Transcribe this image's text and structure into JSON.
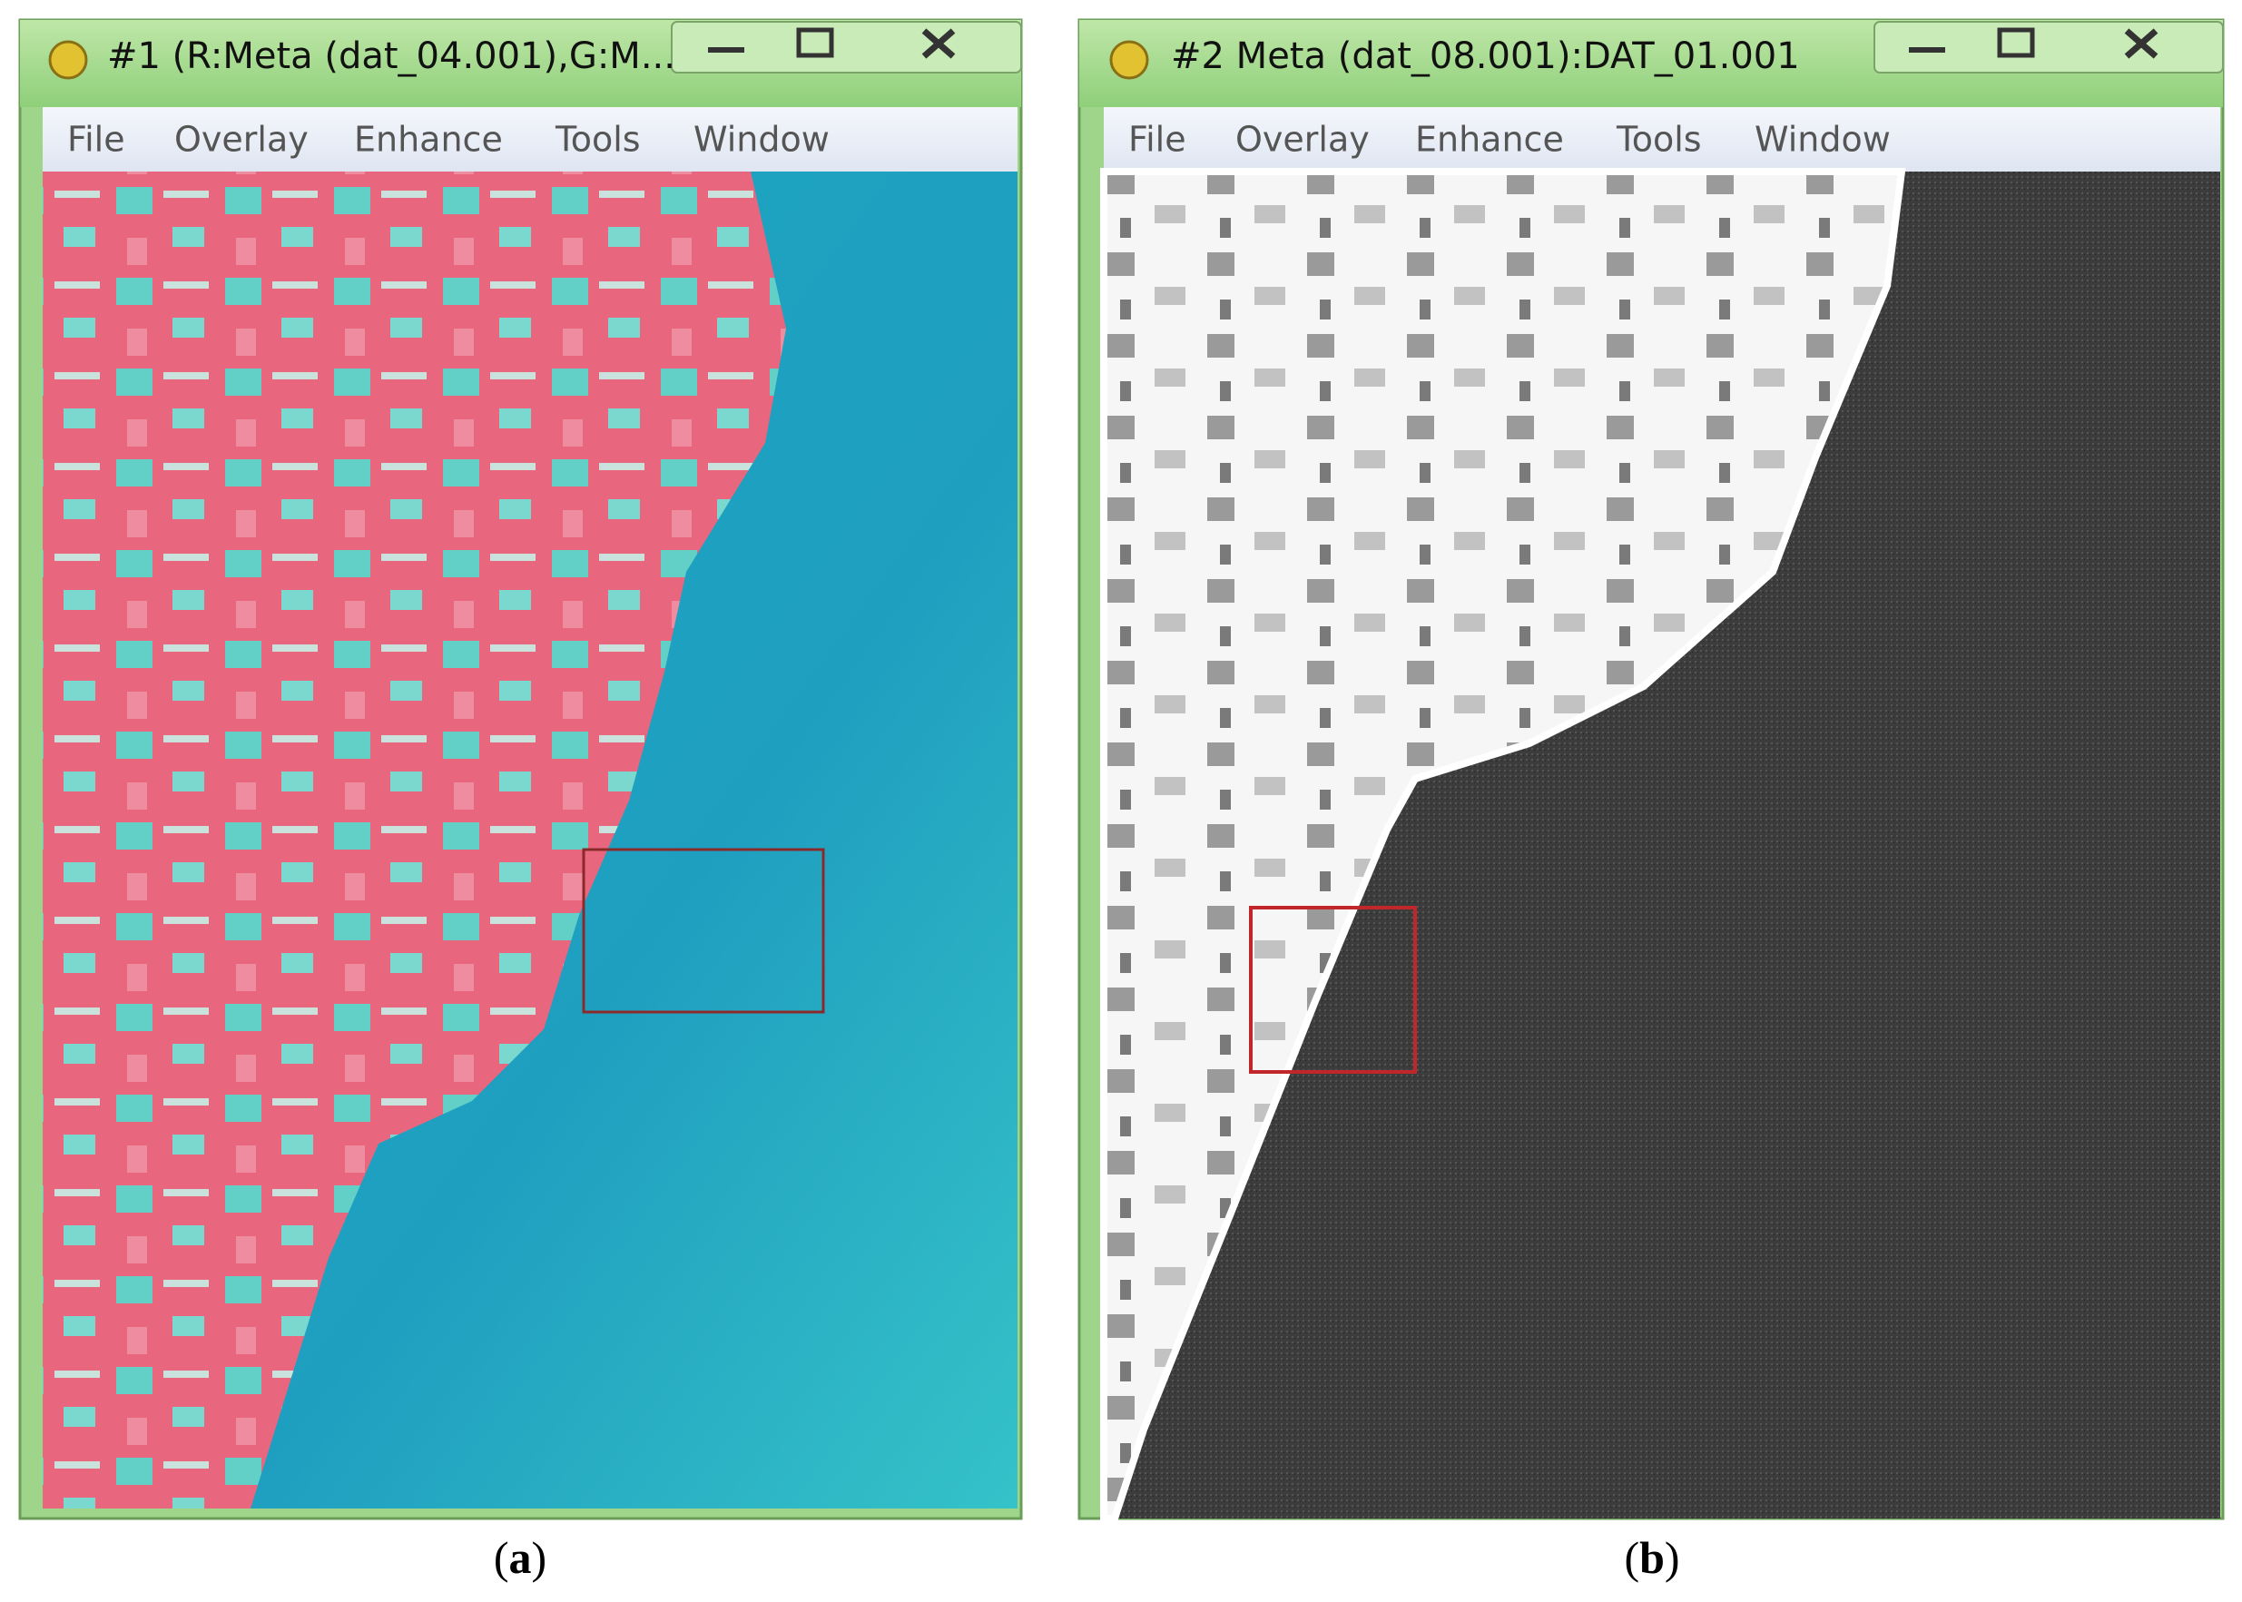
{
  "windows": [
    {
      "title": "#1 (R:Meta (dat_04.001),G:M...",
      "menu": [
        "File",
        "Overlay",
        "Enhance",
        "Tools",
        "Window"
      ],
      "caption": [
        "(",
        "a",
        ")"
      ]
    },
    {
      "title": "#2 Meta (dat_08.001):DAT_01.001",
      "menu": [
        "File",
        "Overlay",
        "Enhance",
        "Tools",
        "Window"
      ],
      "caption": [
        "(",
        "b",
        ")"
      ]
    }
  ]
}
